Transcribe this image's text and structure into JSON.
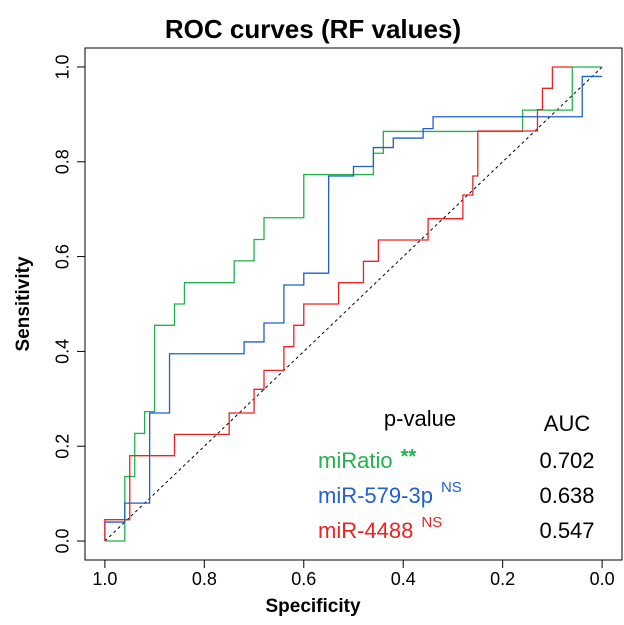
{
  "chart_data": {
    "type": "roc",
    "title": "ROC curves (RF values)",
    "x_label": "Specificity",
    "y_label": "Sensitivity",
    "xlim": [
      1.04,
      -0.04
    ],
    "ylim": [
      -0.04,
      1.04
    ],
    "xticks": [
      {
        "value": 1,
        "label": "1.0"
      },
      0.8,
      0.6,
      0.4,
      0.2,
      {
        "value": 0,
        "label": "0.0"
      }
    ],
    "yticks": [
      {
        "value": 0,
        "label": "0.0"
      },
      0.2,
      0.4,
      0.6,
      0.8,
      {
        "value": 1,
        "label": "1.0"
      }
    ],
    "legend_header": "p-value",
    "auc_header": "AUC",
    "series": [
      {
        "name": "miRatio",
        "significance": "**",
        "auc": 0.702,
        "color": "#22b14c",
        "x": [
          1,
          0.96,
          0.96,
          0.94,
          0.94,
          0.92,
          0.92,
          0.9,
          0.9,
          0.86,
          0.86,
          0.84,
          0.84,
          0.74,
          0.74,
          0.7,
          0.7,
          0.68,
          0.68,
          0.6,
          0.6,
          0.46,
          0.46,
          0.44,
          0.44,
          0.16,
          0.16,
          0.06,
          0.06,
          0
        ],
        "y": [
          0,
          0,
          0.136,
          0.136,
          0.227,
          0.227,
          0.273,
          0.273,
          0.455,
          0.455,
          0.5,
          0.5,
          0.545,
          0.545,
          0.591,
          0.591,
          0.636,
          0.636,
          0.682,
          0.682,
          0.773,
          0.773,
          0.818,
          0.818,
          0.864,
          0.864,
          0.909,
          0.909,
          1,
          1
        ]
      },
      {
        "name": "miR-579-3p",
        "significance": "NS",
        "auc": 0.638,
        "color": "#1f5fd0",
        "x": [
          1,
          1,
          0.96,
          0.96,
          0.91,
          0.91,
          0.87,
          0.87,
          0.72,
          0.72,
          0.68,
          0.68,
          0.64,
          0.64,
          0.6,
          0.6,
          0.55,
          0.55,
          0.5,
          0.5,
          0.46,
          0.46,
          0.42,
          0.42,
          0.36,
          0.36,
          0.34,
          0.34,
          0.04,
          0.04,
          0
        ],
        "y": [
          0,
          0.04,
          0.04,
          0.08,
          0.08,
          0.27,
          0.27,
          0.395,
          0.395,
          0.42,
          0.42,
          0.46,
          0.46,
          0.54,
          0.54,
          0.565,
          0.565,
          0.77,
          0.77,
          0.79,
          0.79,
          0.83,
          0.83,
          0.85,
          0.85,
          0.87,
          0.87,
          0.895,
          0.895,
          0.98,
          0.98
        ]
      },
      {
        "name": "miR-4488",
        "significance": "NS",
        "auc": 0.547,
        "color": "#ee2222",
        "x": [
          1,
          1,
          0.95,
          0.95,
          0.86,
          0.86,
          0.75,
          0.75,
          0.7,
          0.7,
          0.68,
          0.68,
          0.64,
          0.64,
          0.62,
          0.62,
          0.6,
          0.6,
          0.53,
          0.53,
          0.48,
          0.48,
          0.45,
          0.45,
          0.35,
          0.35,
          0.28,
          0.28,
          0.26,
          0.26,
          0.25,
          0.25,
          0.13,
          0.13,
          0.12,
          0.12,
          0.1,
          0.1,
          0.06
        ],
        "y": [
          0,
          0.045,
          0.045,
          0.18,
          0.18,
          0.225,
          0.225,
          0.27,
          0.27,
          0.32,
          0.32,
          0.36,
          0.36,
          0.41,
          0.41,
          0.455,
          0.455,
          0.5,
          0.5,
          0.545,
          0.545,
          0.59,
          0.59,
          0.635,
          0.635,
          0.68,
          0.68,
          0.73,
          0.73,
          0.77,
          0.77,
          0.865,
          0.865,
          0.91,
          0.91,
          0.955,
          0.955,
          1,
          1
        ]
      }
    ]
  }
}
